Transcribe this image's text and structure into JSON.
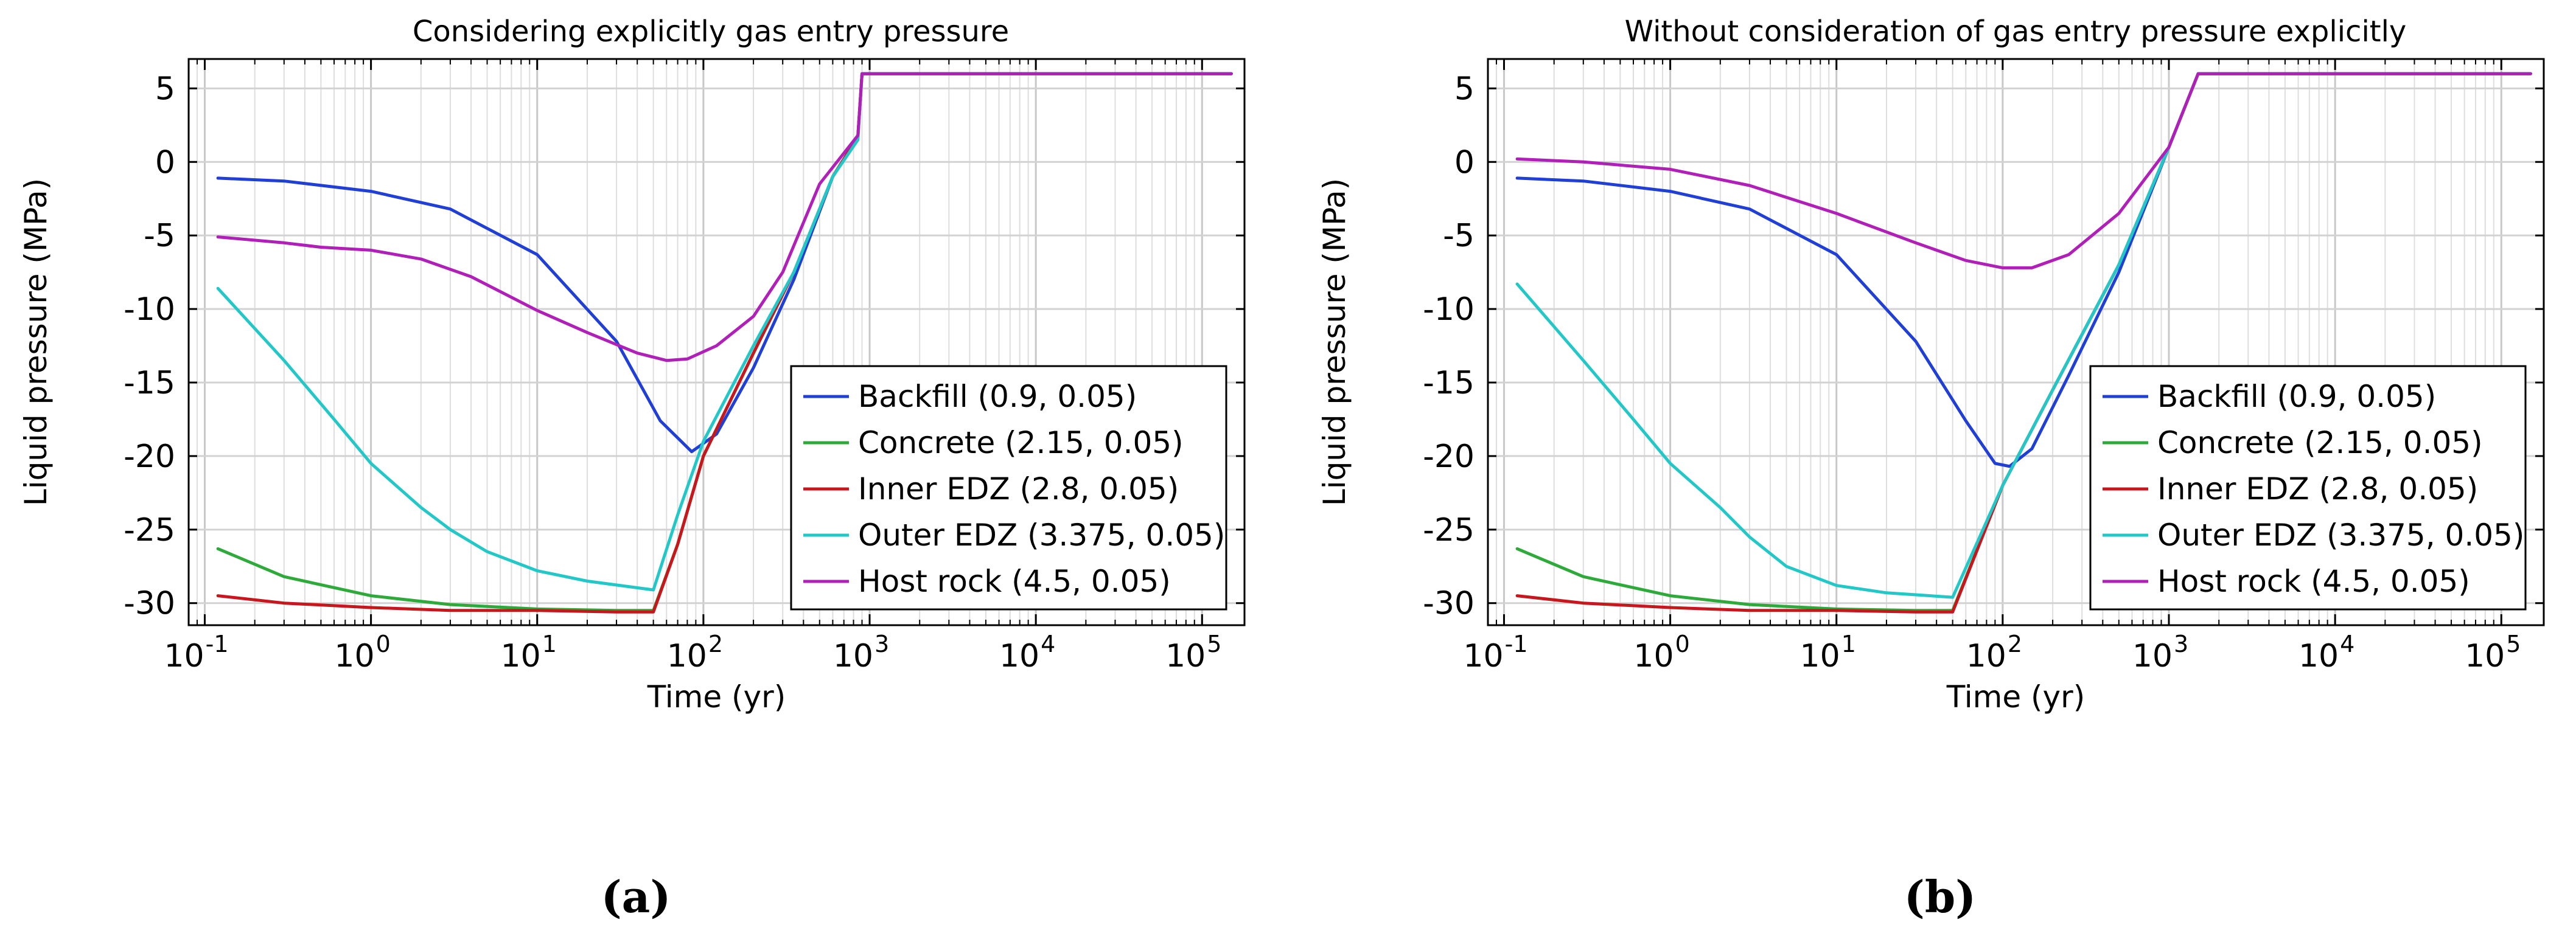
{
  "chart_data": [
    {
      "type": "line",
      "panel_label": "(a)",
      "title": "Considering explicitly gas entry pressure",
      "xlabel": "Time (yr)",
      "ylabel": "Liquid pressure (MPa)",
      "xscale": "log",
      "xlim": [
        0.08,
        180000
      ],
      "ylim": [
        -31.5,
        7
      ],
      "yticks": [
        5,
        0,
        -5,
        -10,
        -15,
        -20,
        -25,
        -30
      ],
      "xtick_exponents": [
        "-1",
        "0",
        "1",
        "2",
        "3",
        "4",
        "5"
      ],
      "grid": true,
      "legend_position": "center-right",
      "series": [
        {
          "name": "Backfill (0.9, 0.05)",
          "color": "#1f3fd6",
          "x": [
            0.12,
            0.3,
            1,
            3,
            10,
            30,
            55,
            85,
            120,
            200,
            350,
            600,
            850,
            900,
            150000
          ],
          "y": [
            -1.1,
            -1.3,
            -2,
            -3.2,
            -6.3,
            -12.2,
            -17.6,
            -19.7,
            -18.5,
            -14,
            -8,
            -1,
            1.7,
            6,
            6
          ]
        },
        {
          "name": "Concrete (2.15, 0.05)",
          "color": "#2eaa3a",
          "x": [
            0.12,
            0.3,
            1,
            3,
            10,
            30,
            50,
            70,
            100,
            200,
            350,
            600,
            850,
            900,
            150000
          ],
          "y": [
            -26.3,
            -28.2,
            -29.5,
            -30.1,
            -30.4,
            -30.5,
            -30.5,
            -26,
            -20,
            -13,
            -7.5,
            -1,
            1.7,
            6,
            6
          ]
        },
        {
          "name": "Inner EDZ (2.8, 0.05)",
          "color": "#c8161d",
          "x": [
            0.12,
            0.3,
            1,
            3,
            10,
            30,
            50,
            70,
            100,
            200,
            350,
            600,
            850,
            900,
            150000
          ],
          "y": [
            -29.5,
            -30,
            -30.3,
            -30.5,
            -30.5,
            -30.6,
            -30.6,
            -26,
            -20,
            -13,
            -7.5,
            -1,
            1.7,
            6,
            6
          ]
        },
        {
          "name": "Outer EDZ (3.375, 0.05)",
          "color": "#22c8c8",
          "x": [
            0.12,
            0.3,
            0.6,
            1,
            2,
            3,
            5,
            10,
            20,
            50,
            70,
            100,
            200,
            350,
            600,
            850,
            900,
            150000
          ],
          "y": [
            -8.6,
            -13.5,
            -17.5,
            -20.5,
            -23.5,
            -25,
            -26.5,
            -27.8,
            -28.5,
            -29.1,
            -24,
            -19,
            -12.5,
            -7.5,
            -1,
            1.5,
            6,
            6
          ]
        },
        {
          "name": "Host rock (4.5, 0.05)",
          "color": "#b01fb8",
          "x": [
            0.12,
            0.3,
            0.5,
            1,
            2,
            4,
            10,
            20,
            40,
            60,
            80,
            120,
            200,
            300,
            500,
            850,
            900,
            150000
          ],
          "y": [
            -5.1,
            -5.5,
            -5.8,
            -6,
            -6.6,
            -7.8,
            -10.1,
            -11.6,
            -13,
            -13.5,
            -13.4,
            -12.5,
            -10.5,
            -7.5,
            -1.5,
            1.8,
            6,
            6
          ]
        }
      ]
    },
    {
      "type": "line",
      "panel_label": "(b)",
      "title": "Without consideration of gas entry pressure explicitly",
      "xlabel": "Time (yr)",
      "ylabel": "Liquid pressure (MPa)",
      "xscale": "log",
      "xlim": [
        0.08,
        180000
      ],
      "ylim": [
        -31.5,
        7
      ],
      "yticks": [
        5,
        0,
        -5,
        -10,
        -15,
        -20,
        -25,
        -30
      ],
      "xtick_exponents": [
        "-1",
        "0",
        "1",
        "2",
        "3",
        "4",
        "5"
      ],
      "grid": true,
      "legend_position": "center-right",
      "series": [
        {
          "name": "Backfill (0.9, 0.05)",
          "color": "#1f3fd6",
          "x": [
            0.12,
            0.3,
            1,
            3,
            10,
            30,
            60,
            90,
            110,
            150,
            250,
            500,
            1000,
            1500,
            150000
          ],
          "y": [
            -1.1,
            -1.3,
            -2,
            -3.2,
            -6.3,
            -12.2,
            -17.6,
            -20.5,
            -20.7,
            -19.5,
            -14.5,
            -7.5,
            1,
            6,
            6
          ]
        },
        {
          "name": "Concrete (2.15, 0.05)",
          "color": "#2eaa3a",
          "x": [
            0.12,
            0.3,
            1,
            3,
            10,
            30,
            50,
            100,
            200,
            500,
            1000,
            1500,
            150000
          ],
          "y": [
            -26.3,
            -28.2,
            -29.5,
            -30.1,
            -30.4,
            -30.5,
            -30.5,
            -22,
            -15.5,
            -7,
            1,
            6,
            6
          ]
        },
        {
          "name": "Inner EDZ (2.8, 0.05)",
          "color": "#c8161d",
          "x": [
            0.12,
            0.3,
            1,
            3,
            10,
            30,
            50,
            100,
            200,
            500,
            1000,
            1500,
            150000
          ],
          "y": [
            -29.5,
            -30,
            -30.3,
            -30.5,
            -30.5,
            -30.6,
            -30.6,
            -22,
            -15.5,
            -7,
            1,
            6,
            6
          ]
        },
        {
          "name": "Outer EDZ (3.375, 0.05)",
          "color": "#22c8c8",
          "x": [
            0.12,
            0.3,
            0.6,
            1,
            2,
            3,
            5,
            10,
            20,
            50,
            100,
            200,
            500,
            1000,
            1500,
            150000
          ],
          "y": [
            -8.3,
            -13.5,
            -17.5,
            -20.5,
            -23.5,
            -25.5,
            -27.5,
            -28.8,
            -29.3,
            -29.6,
            -22,
            -15.5,
            -7,
            1,
            6,
            6
          ]
        },
        {
          "name": "Host rock (4.5, 0.05)",
          "color": "#b01fb8",
          "x": [
            0.12,
            0.3,
            1,
            3,
            10,
            30,
            60,
            100,
            150,
            250,
            500,
            1000,
            1500,
            150000
          ],
          "y": [
            0.2,
            0,
            -0.5,
            -1.6,
            -3.5,
            -5.5,
            -6.7,
            -7.2,
            -7.2,
            -6.3,
            -3.5,
            1,
            6,
            6
          ]
        }
      ]
    }
  ]
}
